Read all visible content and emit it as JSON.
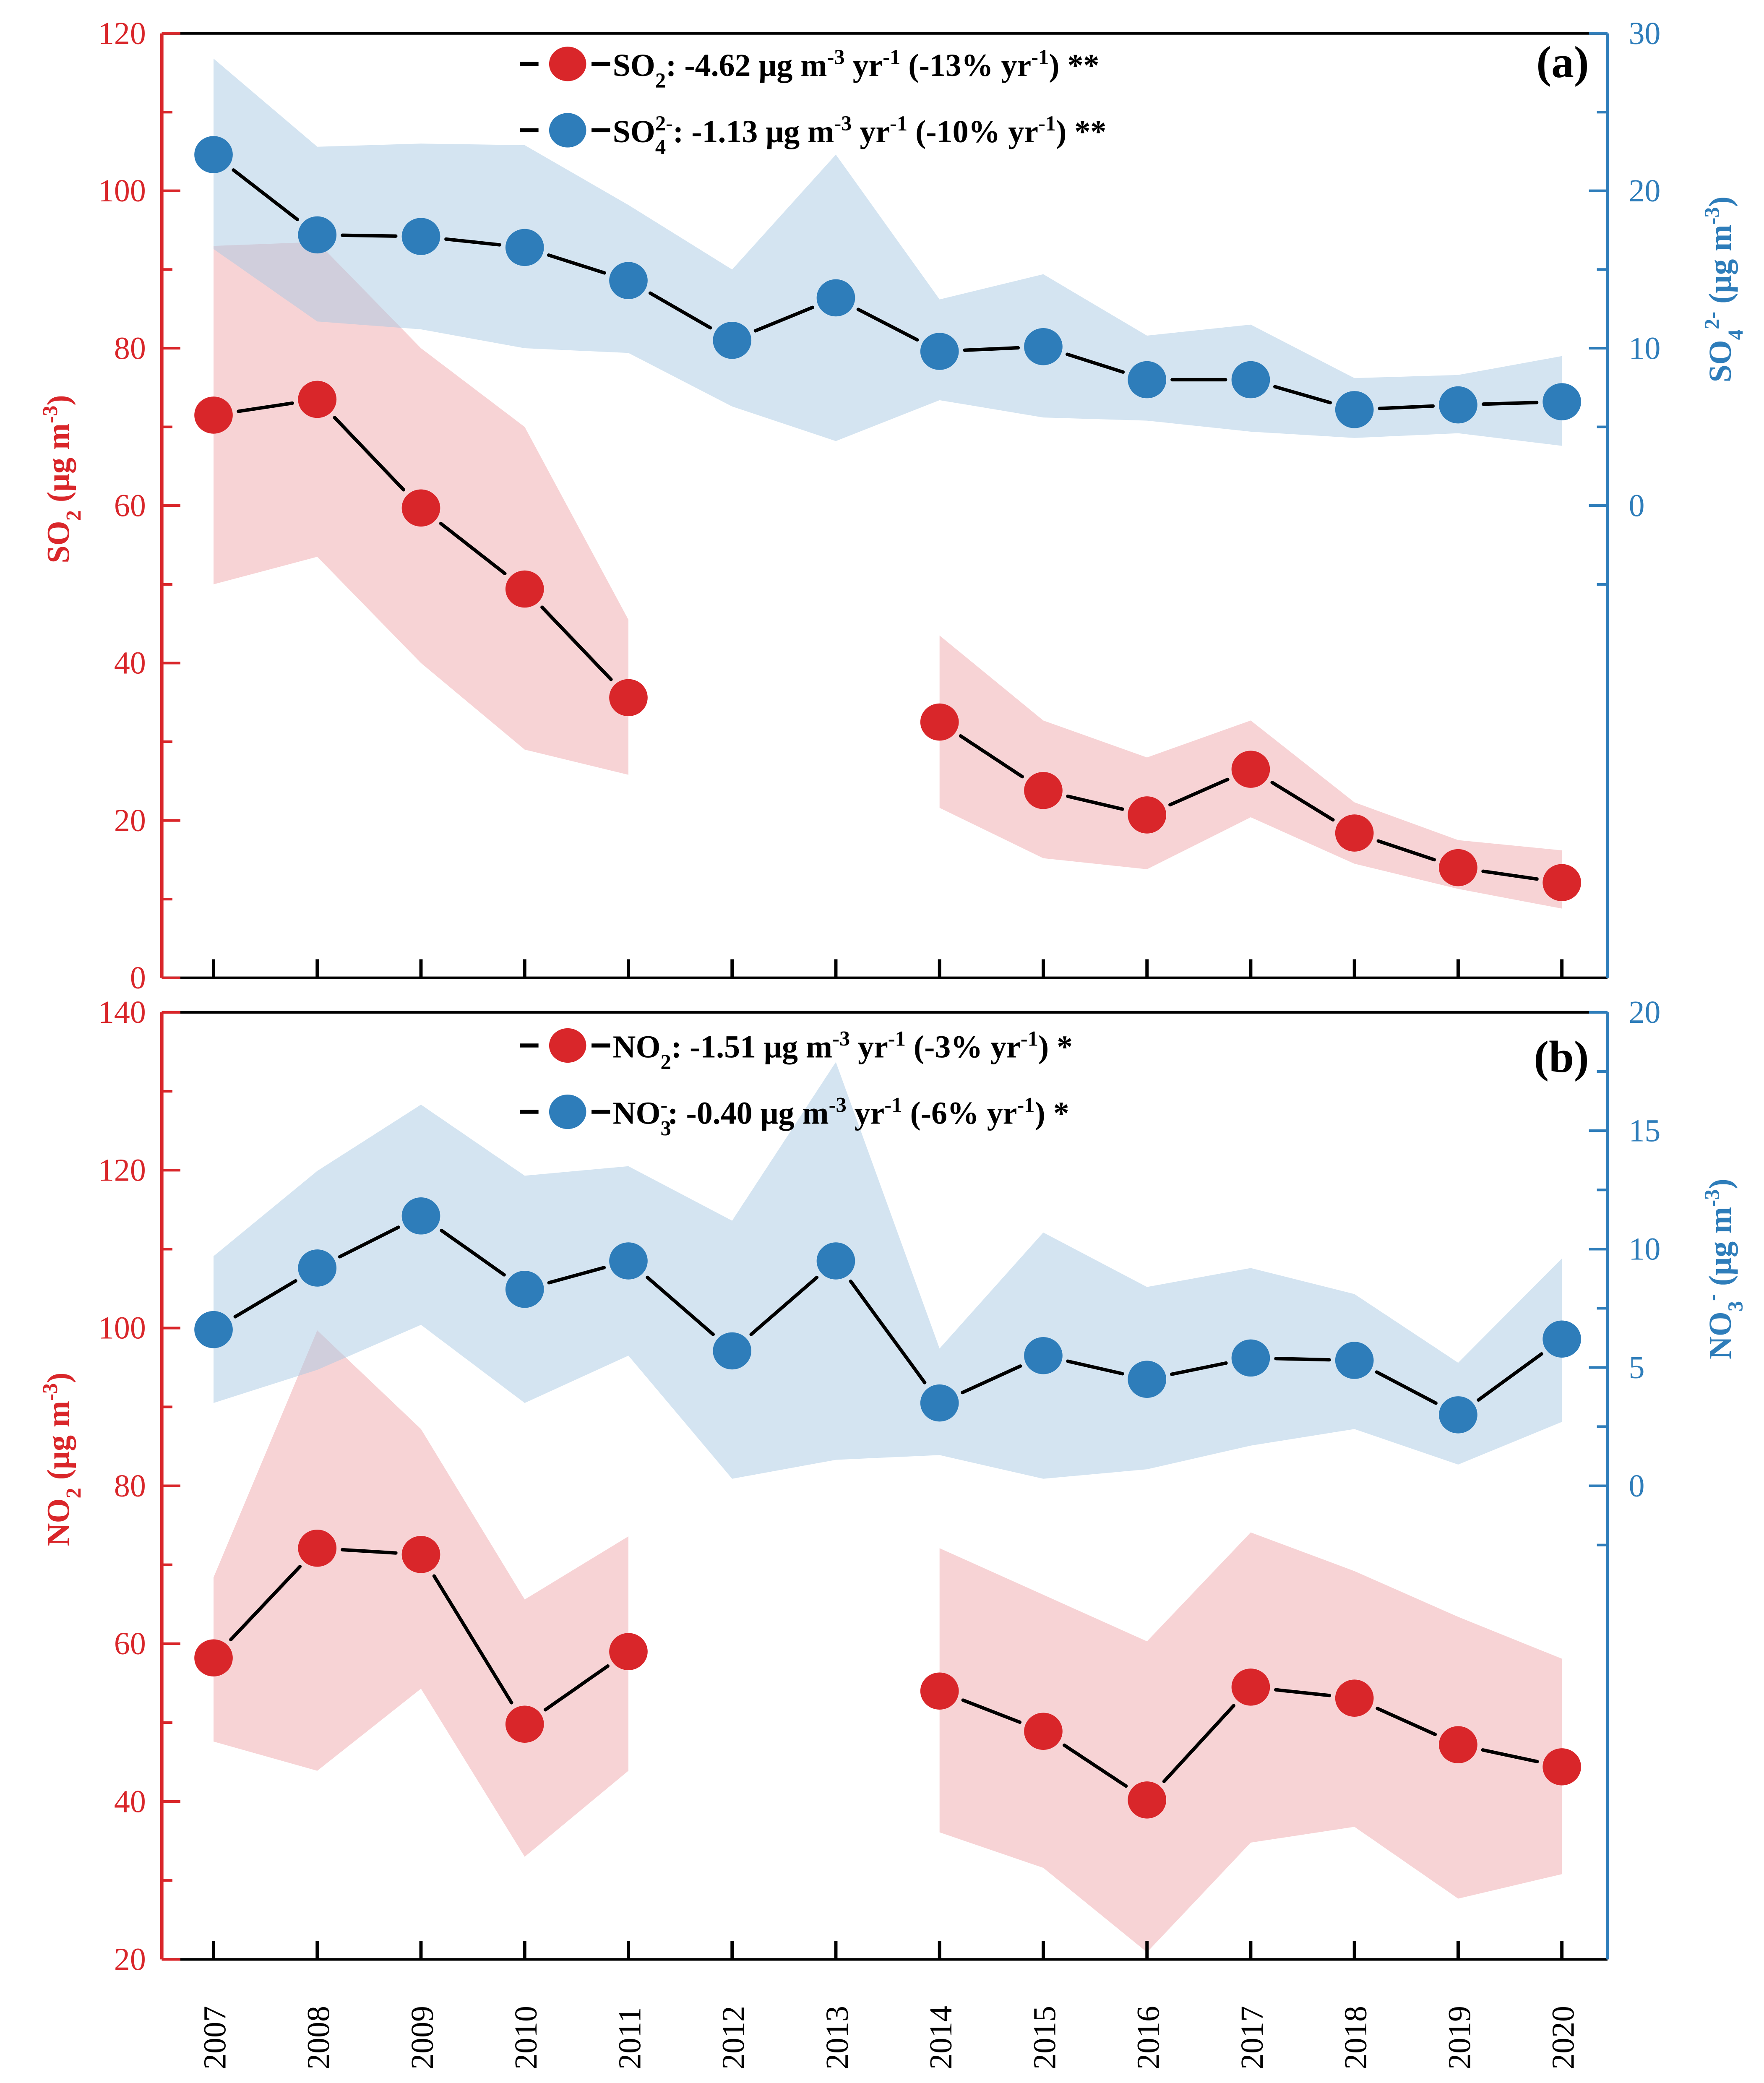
{
  "colors": {
    "red": "#d9262a",
    "blue": "#2e7dba",
    "red_band": "#f0a8ab",
    "blue_band": "#a9c9e4"
  },
  "chart_data": [
    {
      "type": "line",
      "panel_label": "(a)",
      "x": [
        2007,
        2008,
        2009,
        2010,
        2011,
        2012,
        2013,
        2014,
        2015,
        2016,
        2017,
        2018,
        2019,
        2020
      ],
      "x_tick_labels": [
        "2007",
        "2008",
        "2009",
        "2010",
        "2011",
        "2012",
        "2013",
        "2014",
        "2015",
        "2016",
        "2017",
        "2018",
        "2019",
        "2020"
      ],
      "left_axis": {
        "label_main": "SO",
        "label_sub": "2",
        "label_unit": " (μg m",
        "label_sup": "-3",
        "label_close": ")",
        "ylim": [
          0,
          120
        ],
        "ticks": [
          0,
          20,
          40,
          60,
          80,
          100,
          120
        ],
        "color": "red"
      },
      "right_axis": {
        "label_main": "SO",
        "label_sub": "4",
        "label_sup_ion": "2-",
        "label_unit": " (μg m",
        "label_sup": "-3",
        "label_close": ")",
        "ylim": [
          -30,
          30
        ],
        "ticks": [
          0,
          10,
          20,
          30
        ],
        "color": "blue"
      },
      "series": [
        {
          "name": "SO2",
          "axis": "left",
          "color": "red",
          "legend": {
            "species": "SO",
            "sub": "2",
            "ion": "",
            "text": ": -4.62 μg m",
            "sup1": "-3",
            "mid": " yr",
            "sup2": "-1",
            "pct": " (-13% yr",
            "sup3": "-1",
            "tail": ") **"
          },
          "values": [
            71.5,
            73.5,
            59.7,
            49.4,
            35.6,
            null,
            null,
            32.5,
            23.8,
            20.7,
            26.5,
            18.4,
            14.0,
            12.1
          ],
          "upper": [
            93.0,
            93.5,
            80.0,
            70.0,
            45.5,
            null,
            null,
            43.5,
            32.7,
            28.0,
            32.7,
            22.3,
            17.5,
            16.2
          ],
          "lower": [
            50.0,
            53.5,
            40.0,
            29.0,
            25.8,
            null,
            null,
            21.6,
            15.2,
            13.8,
            20.4,
            14.5,
            11.3,
            8.8
          ]
        },
        {
          "name": "SO4 2-",
          "axis": "right",
          "color": "blue",
          "legend": {
            "species": "SO",
            "sub": "4",
            "ion": "2-",
            "text": ": -1.13 μg m",
            "sup1": "-3",
            "mid": " yr",
            "sup2": "-1",
            "pct": " (-10% yr",
            "sup3": "-1",
            "tail": ") **"
          },
          "values": [
            22.3,
            17.2,
            17.1,
            16.4,
            14.3,
            10.5,
            13.2,
            9.8,
            10.1,
            8.0,
            8.0,
            6.1,
            6.4,
            6.6
          ],
          "upper": [
            28.4,
            22.8,
            23.0,
            22.9,
            19.1,
            15.0,
            22.3,
            13.1,
            14.7,
            10.8,
            11.5,
            8.1,
            8.3,
            9.5
          ],
          "lower": [
            16.3,
            11.7,
            11.2,
            10.0,
            9.7,
            6.3,
            4.1,
            6.7,
            5.6,
            5.4,
            4.7,
            4.3,
            4.6,
            3.8
          ]
        }
      ]
    },
    {
      "type": "line",
      "panel_label": "(b)",
      "x": [
        2007,
        2008,
        2009,
        2010,
        2011,
        2012,
        2013,
        2014,
        2015,
        2016,
        2017,
        2018,
        2019,
        2020
      ],
      "x_tick_labels": [
        "2007",
        "2008",
        "2009",
        "2010",
        "2011",
        "2012",
        "2013",
        "2014",
        "2015",
        "2016",
        "2017",
        "2018",
        "2019",
        "2020"
      ],
      "left_axis": {
        "label_main": "NO",
        "label_sub": "2",
        "label_unit": " (μg m",
        "label_sup": "-3",
        "label_close": ")",
        "ylim": [
          20,
          140
        ],
        "ticks": [
          20,
          40,
          60,
          80,
          100,
          120,
          140
        ],
        "color": "red"
      },
      "right_axis": {
        "label_main": "NO",
        "label_sub": "3",
        "label_sup_ion": "-",
        "label_unit": " (μg m",
        "label_sup": "-3",
        "label_close": ")",
        "ylim": [
          -20,
          20
        ],
        "ticks": [
          0,
          5,
          10,
          15,
          20
        ],
        "color": "blue"
      },
      "series": [
        {
          "name": "NO2",
          "axis": "left",
          "color": "red",
          "legend": {
            "species": "NO",
            "sub": "2",
            "ion": "",
            "text": ": -1.51 μg m",
            "sup1": "-3",
            "mid": " yr",
            "sup2": "-1",
            "pct": " (-3% yr",
            "sup3": "-1",
            "tail": ") *"
          },
          "values": [
            58.2,
            72.1,
            71.3,
            49.8,
            59.0,
            null,
            null,
            54.0,
            48.9,
            40.2,
            54.5,
            53.1,
            47.2,
            44.4
          ],
          "upper": [
            68.4,
            99.7,
            87.2,
            65.6,
            73.6,
            null,
            null,
            72.1,
            66.2,
            60.3,
            74.1,
            69.2,
            63.4,
            58.1
          ],
          "lower": [
            47.6,
            43.9,
            54.3,
            33.0,
            43.9,
            null,
            null,
            36.1,
            31.6,
            20.9,
            34.8,
            36.8,
            27.7,
            30.8
          ]
        },
        {
          "name": "NO3 -",
          "axis": "right",
          "color": "blue",
          "legend": {
            "species": "NO",
            "sub": "3",
            "ion": "-",
            "text": ": -0.40 μg m",
            "sup1": "-3",
            "mid": " yr",
            "sup2": "-1",
            "pct": " (-6% yr",
            "sup3": "-1",
            "tail": ") *"
          },
          "values": [
            6.6,
            9.2,
            11.4,
            8.3,
            9.5,
            5.7,
            9.5,
            3.5,
            5.5,
            4.5,
            5.4,
            5.3,
            3.0,
            6.2
          ],
          "upper": [
            9.7,
            13.3,
            16.1,
            13.1,
            13.5,
            11.2,
            17.9,
            5.8,
            10.7,
            8.4,
            9.2,
            8.1,
            5.2,
            9.6
          ],
          "lower": [
            3.5,
            4.9,
            6.8,
            3.5,
            5.5,
            0.3,
            1.1,
            1.3,
            0.3,
            0.7,
            1.7,
            2.4,
            0.9,
            2.7
          ]
        }
      ]
    }
  ]
}
